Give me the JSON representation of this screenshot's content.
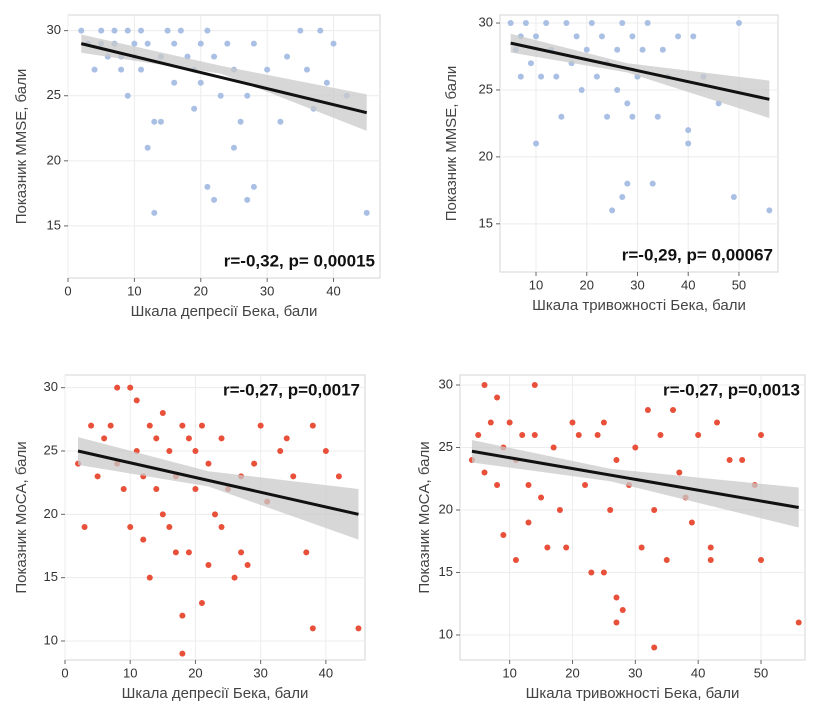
{
  "chart_data": [
    {
      "type": "scatter",
      "xlabel": "Шкала депресії Бека, бали",
      "ylabel": "Показник MMSE, бали",
      "annotation": "r=-0,32, p= 0,00015",
      "color": "#a9bfe3",
      "fit_color": "#111111",
      "band_color": "#c9c9c9",
      "grid": true,
      "xlim": [
        0,
        47
      ],
      "ylim": [
        11,
        31.2
      ],
      "xticks": [
        0,
        10,
        20,
        30,
        40
      ],
      "yticks": [
        15,
        20,
        25,
        30
      ],
      "x": [
        2,
        3,
        4,
        5,
        5,
        6,
        7,
        7,
        8,
        8,
        9,
        9,
        10,
        10,
        11,
        11,
        12,
        12,
        13,
        13,
        14,
        14,
        15,
        16,
        16,
        17,
        18,
        19,
        19,
        20,
        20,
        21,
        21,
        22,
        22,
        23,
        24,
        25,
        25,
        26,
        27,
        27,
        28,
        28,
        30,
        32,
        33,
        35,
        36,
        37,
        38,
        39,
        40,
        42,
        45
      ],
      "y": [
        30,
        29,
        27,
        30,
        29,
        28,
        30,
        29,
        28,
        27,
        30,
        25,
        29,
        28,
        30,
        27,
        21,
        29,
        16,
        23,
        23,
        28,
        30,
        26,
        29,
        30,
        28,
        24,
        27,
        29,
        26,
        18,
        30,
        17,
        28,
        25,
        29,
        21,
        27,
        23,
        17,
        25,
        18,
        29,
        27,
        23,
        28,
        30,
        27,
        24,
        30,
        26,
        29,
        25,
        16
      ],
      "fit": {
        "x": [
          2,
          45
        ],
        "y": [
          29,
          23.7
        ]
      },
      "band": {
        "x": [
          2,
          23,
          45
        ],
        "lower": [
          28.3,
          26.7,
          22.3
        ],
        "upper": [
          29.7,
          27.3,
          25.1
        ]
      }
    },
    {
      "type": "scatter",
      "xlabel": "Шкала тривожності Бека, бали",
      "ylabel": "Показник MMSE, бали",
      "annotation": "r=-0,29, p= 0,00067",
      "color": "#a9bfe3",
      "fit_color": "#111111",
      "band_color": "#c9c9c9",
      "grid": true,
      "xlim": [
        2.9,
        57.7
      ],
      "ylim": [
        11.4,
        30.6
      ],
      "xticks": [
        10,
        20,
        30,
        40,
        50
      ],
      "yticks": [
        15,
        20,
        25,
        30
      ],
      "x": [
        5,
        6,
        7,
        7,
        8,
        9,
        10,
        10,
        11,
        12,
        13,
        14,
        15,
        16,
        17,
        18,
        19,
        20,
        21,
        22,
        23,
        24,
        24,
        25,
        26,
        26,
        27,
        27,
        28,
        28,
        29,
        29,
        30,
        31,
        32,
        33,
        34,
        35,
        36,
        38,
        40,
        40,
        41,
        43,
        46,
        49,
        50,
        56
      ],
      "y": [
        30,
        28,
        26,
        29,
        30,
        27,
        21,
        29,
        26,
        30,
        28,
        26,
        23,
        30,
        27,
        29,
        25,
        28,
        30,
        26,
        29,
        23,
        27,
        16,
        28,
        25,
        17,
        30,
        18,
        24,
        23,
        29,
        26,
        28,
        30,
        18,
        23,
        28,
        26,
        29,
        22,
        21,
        29,
        26,
        24,
        17,
        30,
        16
      ],
      "fit": {
        "x": [
          5,
          56
        ],
        "y": [
          28.5,
          24.3
        ]
      },
      "band": {
        "x": [
          5,
          28,
          56
        ],
        "lower": [
          27.8,
          26.3,
          22.9
        ],
        "upper": [
          29.2,
          27,
          25.7
        ]
      }
    },
    {
      "type": "scatter",
      "xlabel": "Шкала депресії Бека, бали",
      "ylabel": "Показник MoCA, бали",
      "annotation": "r=-0,27, p=0,0017",
      "color": "#e8503a",
      "fit_color": "#111111",
      "band_color": "#c9c9c9",
      "grid": true,
      "xlim": [
        0,
        46
      ],
      "ylim": [
        8.5,
        31
      ],
      "xticks": [
        0,
        10,
        20,
        30,
        40
      ],
      "yticks": [
        10,
        15,
        20,
        25,
        30
      ],
      "x": [
        2,
        3,
        4,
        5,
        6,
        7,
        8,
        8,
        9,
        10,
        10,
        11,
        11,
        12,
        12,
        13,
        13,
        14,
        14,
        15,
        15,
        16,
        16,
        17,
        17,
        18,
        18,
        18,
        19,
        19,
        20,
        20,
        21,
        21,
        22,
        22,
        23,
        24,
        24,
        25,
        26,
        27,
        27,
        28,
        29,
        30,
        31,
        33,
        34,
        35,
        37,
        38,
        38,
        40,
        42,
        45
      ],
      "y": [
        24,
        19,
        27,
        23,
        26,
        27,
        30,
        24,
        22,
        30,
        19,
        29,
        25,
        18,
        23,
        15,
        27,
        22,
        26,
        20,
        28,
        19,
        25,
        17,
        23,
        9,
        12,
        27,
        26,
        17,
        22,
        25,
        13,
        27,
        16,
        24,
        20,
        26,
        19,
        22,
        15,
        17,
        23,
        16,
        24,
        27,
        21,
        25,
        26,
        23,
        17,
        11,
        27,
        25,
        23,
        11
      ],
      "fit": {
        "x": [
          2,
          45
        ],
        "y": [
          25,
          20
        ]
      },
      "band": {
        "x": [
          2,
          22,
          45
        ],
        "lower": [
          23.9,
          22.2,
          18
        ],
        "upper": [
          26.1,
          23.4,
          22
        ]
      }
    },
    {
      "type": "scatter",
      "xlabel": "Шкала тривожності Бека, бали",
      "ylabel": "Показник MoCA, бали",
      "annotation": "r=-0,27, p=0,0013",
      "color": "#e8503a",
      "fit_color": "#111111",
      "band_color": "#c9c9c9",
      "grid": true,
      "xlim": [
        2.1,
        57
      ],
      "ylim": [
        8,
        30.8
      ],
      "xticks": [
        10,
        20,
        30,
        40,
        50
      ],
      "yticks": [
        10,
        15,
        20,
        25,
        30
      ],
      "x": [
        4,
        5,
        6,
        6,
        7,
        8,
        8,
        9,
        9,
        10,
        11,
        11,
        12,
        13,
        13,
        14,
        14,
        15,
        16,
        17,
        18,
        19,
        20,
        21,
        22,
        23,
        24,
        25,
        25,
        26,
        27,
        27,
        27,
        28,
        29,
        30,
        31,
        32,
        33,
        33,
        34,
        35,
        36,
        37,
        38,
        39,
        40,
        42,
        42,
        43,
        45,
        47,
        49,
        50,
        50,
        56
      ],
      "y": [
        24,
        26,
        30,
        23,
        27,
        22,
        29,
        18,
        25,
        27,
        16,
        24,
        26,
        19,
        22,
        30,
        26,
        21,
        17,
        25,
        20,
        17,
        27,
        26,
        22,
        15,
        26,
        15,
        27,
        20,
        11,
        13,
        24,
        12,
        22,
        25,
        17,
        28,
        9,
        20,
        26,
        16,
        28,
        23,
        21,
        19,
        26,
        17,
        16,
        27,
        24,
        24,
        22,
        26,
        16,
        11
      ],
      "fit": {
        "x": [
          4,
          56
        ],
        "y": [
          24.7,
          20.2
        ]
      },
      "band": {
        "x": [
          4,
          26,
          56
        ],
        "lower": [
          23.8,
          22.3,
          18.6
        ],
        "upper": [
          25.6,
          23.3,
          21.8
        ]
      }
    }
  ]
}
